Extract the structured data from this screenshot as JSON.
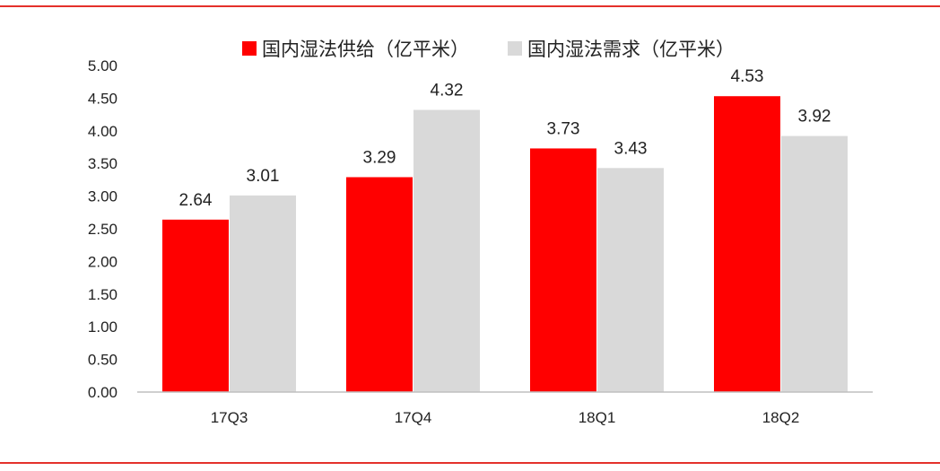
{
  "chart_data": {
    "type": "bar",
    "categories": [
      "17Q3",
      "17Q4",
      "18Q1",
      "18Q2"
    ],
    "series": [
      {
        "name": "国内湿法供给（亿平米）",
        "values": [
          2.64,
          3.29,
          3.73,
          4.53
        ],
        "color": "#ff0000"
      },
      {
        "name": "国内湿法需求（亿平米）",
        "values": [
          3.01,
          4.32,
          3.43,
          3.92
        ],
        "color": "#d9d9d9"
      }
    ],
    "ylim": [
      0,
      5
    ],
    "yticks": [
      "0.00",
      "0.50",
      "1.00",
      "1.50",
      "2.00",
      "2.50",
      "3.00",
      "3.50",
      "4.00",
      "4.50",
      "5.00"
    ],
    "legend_position": "top-center",
    "grid": false
  },
  "colors": {
    "rule": "#e4312b",
    "axis": "#bfbfbf"
  }
}
